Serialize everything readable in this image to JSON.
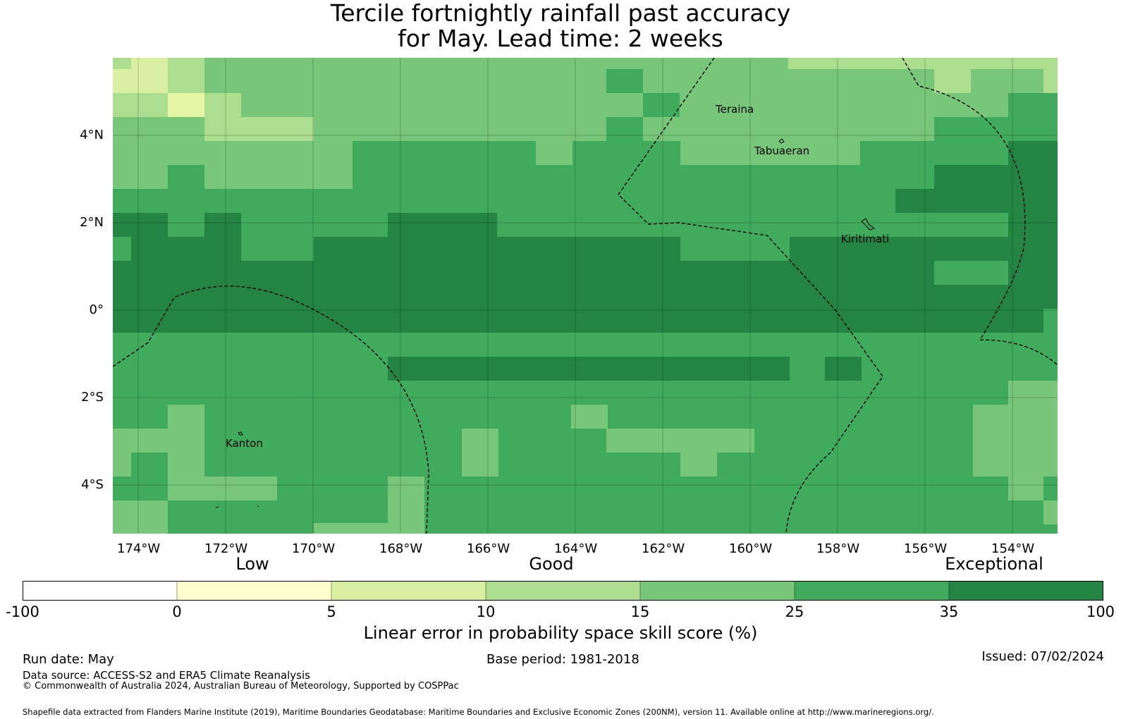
{
  "title": {
    "line1": "Tercile fortnightly rainfall past accuracy",
    "line2": "for May. Lead time: 2 weeks"
  },
  "map": {
    "lon_labels": [
      "174°W",
      "172°W",
      "170°W",
      "168°W",
      "166°W",
      "164°W",
      "162°W",
      "160°W",
      "158°W",
      "156°W",
      "154°W"
    ],
    "lat_labels": [
      "4°N",
      "2°N",
      "0°",
      "2°S",
      "4°S"
    ],
    "places": [
      "Teraina",
      "Tabuaeran",
      "Kiritimati",
      "Kanton"
    ]
  },
  "colorbar": {
    "categories": [
      "Low",
      "Good",
      "Exceptional"
    ],
    "tick_labels": [
      "-100",
      "0",
      "5",
      "10",
      "15",
      "25",
      "35",
      "100"
    ],
    "colors": [
      "#ffffff",
      "#ffffcc",
      "#d9f0a3",
      "#addd8e",
      "#78c679",
      "#41ab5d",
      "#238443"
    ],
    "label": "Linear error in probability space skill score (%)"
  },
  "footer": {
    "run_date": "Run date: May",
    "base_period": "Base period: 1981-2018",
    "issued": "Issued: 07/02/2024",
    "data_source": "Data source: ACCESS-S2 and ERA5 Climate Reanalysis",
    "copyright": "© Commonwealth of Australia 2024, Australian Bureau of Meteorology, Supported by COSPPac",
    "shapefile": "Shapefile data extracted from Flanders Marine Institute (2019), Maritime Boundaries Geodatabase: Maritime Boundaries and Exclusive Economic Zones (200NM), version 11. Available online at http://www.marineregions.org/."
  }
}
